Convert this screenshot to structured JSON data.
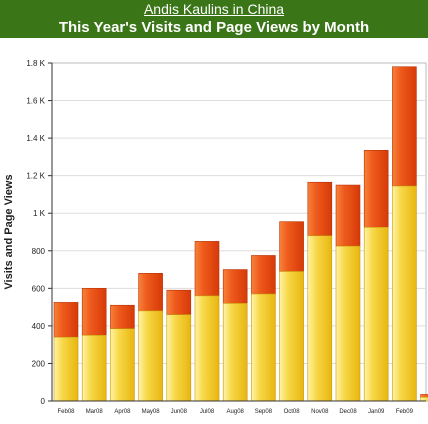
{
  "header": {
    "site_link": "Andis Kaulins in China",
    "title": "This Year's Visits and Page Views by Month"
  },
  "colors": {
    "header_bg": "#3a7518",
    "visits_fill": "#f2c51a",
    "pageviews_fill": "#ea4a12",
    "grid": "#dddddd",
    "plot_border": "#bbbbbb"
  },
  "chart_data": {
    "type": "bar",
    "stacked": true,
    "title": "This Year's Visits and Page Views by Month",
    "ylabel": "Visits and Page Views",
    "xlabel": "",
    "ylim": [
      0,
      1800
    ],
    "yticks": [
      {
        "value": 0,
        "label": "0"
      },
      {
        "value": 200,
        "label": "200"
      },
      {
        "value": 400,
        "label": "400"
      },
      {
        "value": 600,
        "label": "600"
      },
      {
        "value": 800,
        "label": "800"
      },
      {
        "value": 1000,
        "label": "1 K"
      },
      {
        "value": 1200,
        "label": "1.2 K"
      },
      {
        "value": 1400,
        "label": "1.4 K"
      },
      {
        "value": 1600,
        "label": "1.6 K"
      },
      {
        "value": 1800,
        "label": "1.8 K"
      }
    ],
    "categories": [
      "Feb08",
      "Mar08",
      "Apr08",
      "May08",
      "Jun08",
      "Jul08",
      "Aug08",
      "Sep08",
      "Oct08",
      "Nov08",
      "Dec08",
      "Jan09",
      "Feb09",
      "M"
    ],
    "visits": [
      340,
      350,
      385,
      480,
      460,
      560,
      520,
      570,
      690,
      880,
      825,
      925,
      1145,
      20
    ],
    "totals": [
      525,
      600,
      510,
      680,
      590,
      850,
      700,
      775,
      955,
      1165,
      1150,
      1335,
      1780,
      35
    ],
    "grid": true
  }
}
